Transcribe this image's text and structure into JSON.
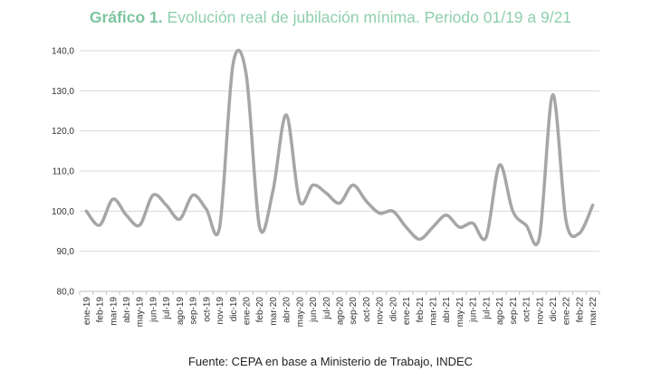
{
  "title_prefix": "Gráfico 1.",
  "title_text": "Evolución real de jubilación mínima. Periodo 01/19 a 9/21",
  "source": "Fuente: CEPA en base a Ministerio de Trabajo, INDEC",
  "colors": {
    "line": "#a6a6a6",
    "title": "#8fcfad",
    "grid": "#d9d9d9"
  },
  "chart_data": {
    "type": "line",
    "title": "Evolución real de jubilación mínima. Periodo 01/19 a 9/21",
    "xlabel": "",
    "ylabel": "",
    "ylim": [
      80,
      140
    ],
    "yticks": [
      "80,0",
      "90,0",
      "100,0",
      "110,0",
      "120,0",
      "130,0",
      "140,0"
    ],
    "grid": true,
    "categories": [
      "ene-19",
      "feb-19",
      "mar-19",
      "abr-19",
      "may-19",
      "jun-19",
      "jul-19",
      "ago-19",
      "sep-19",
      "oct-19",
      "nov-19",
      "dic-19",
      "ene-20",
      "feb-20",
      "mar-20",
      "abr-20",
      "may-20",
      "jun-20",
      "jul-20",
      "ago-20",
      "sep-20",
      "oct-20",
      "nov-20",
      "dic-20",
      "ene-21",
      "feb-21",
      "mar-21",
      "abr-21",
      "may-21",
      "jun-21",
      "jul-21",
      "ago-21",
      "sep-21",
      "oct-21",
      "nov-21",
      "dic-21",
      "ene-22",
      "feb-22",
      "mar-22"
    ],
    "series": [
      {
        "values": [
          100.0,
          96.5,
          103.0,
          99.0,
          96.5,
          104.0,
          101.5,
          98.0,
          104.0,
          100.5,
          96.0,
          136.5,
          134.0,
          96.0,
          105.0,
          124.0,
          102.5,
          106.5,
          104.5,
          102.0,
          106.5,
          102.5,
          99.5,
          100.0,
          96.0,
          93.0,
          96.0,
          99.0,
          96.0,
          97.0,
          93.5,
          111.5,
          100.0,
          96.5,
          93.5,
          129.0,
          97.5,
          94.5,
          101.5
        ]
      }
    ]
  }
}
